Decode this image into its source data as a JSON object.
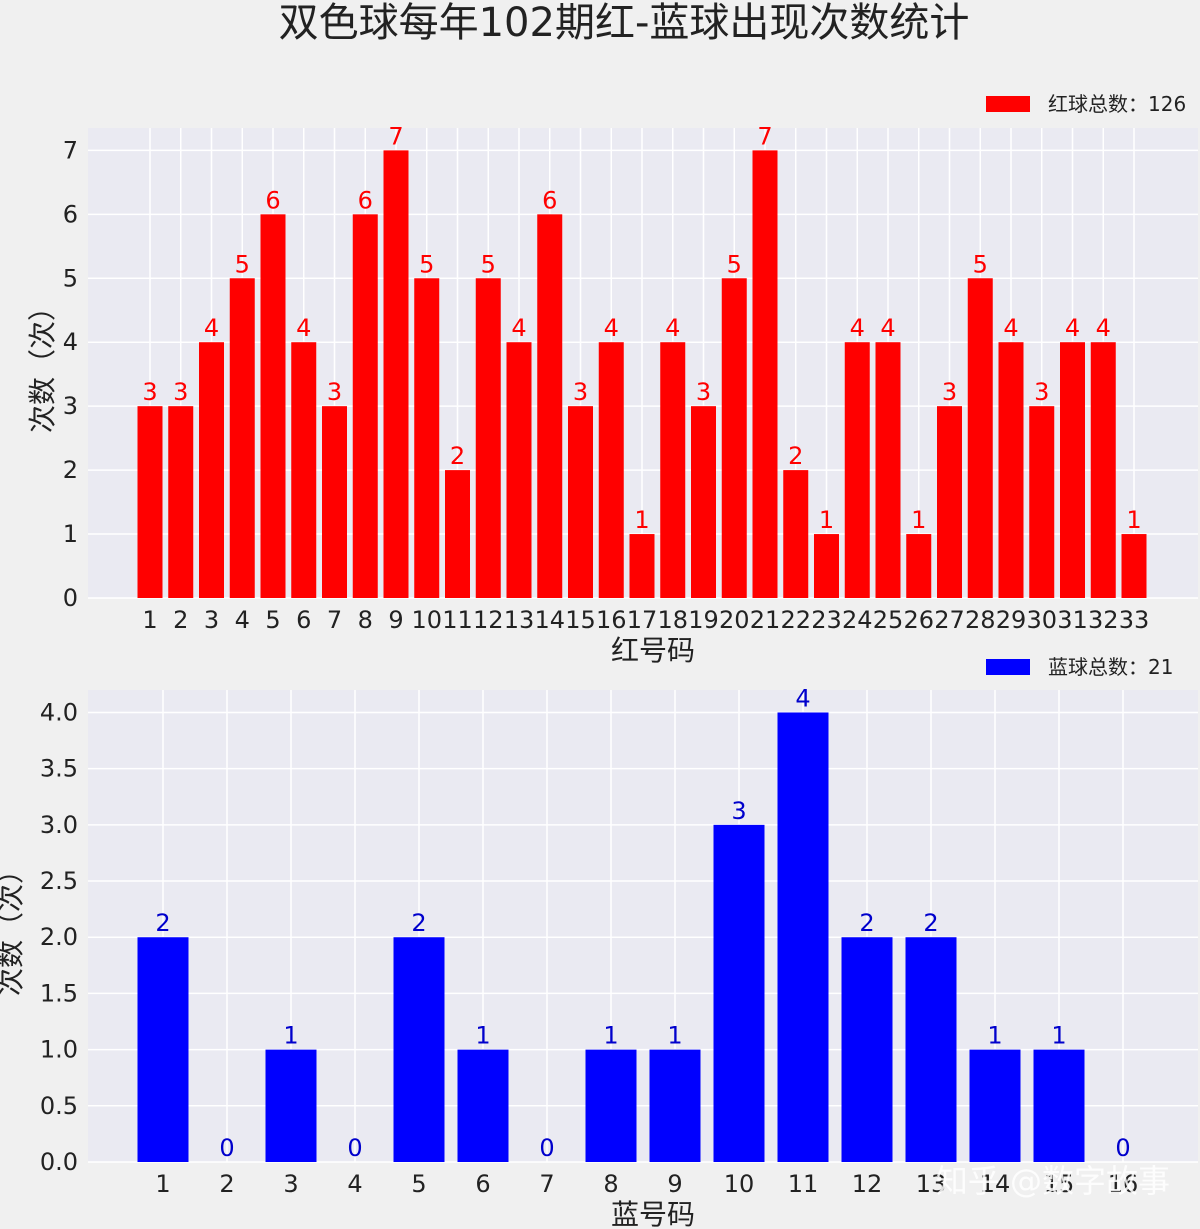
{
  "title": "双色球每年102期红-蓝球出现次数统计",
  "watermark": "知乎 @数字故事",
  "chart_data": [
    {
      "type": "bar",
      "name": "red",
      "color": "#ff0000",
      "label_color": "#ff0000",
      "categories": [
        "1",
        "2",
        "3",
        "4",
        "5",
        "6",
        "7",
        "8",
        "9",
        "10",
        "11",
        "12",
        "13",
        "14",
        "15",
        "16",
        "17",
        "18",
        "19",
        "20",
        "21",
        "22",
        "23",
        "24",
        "25",
        "26",
        "27",
        "28",
        "29",
        "30",
        "31",
        "32",
        "33"
      ],
      "values": [
        3,
        3,
        4,
        5,
        6,
        4,
        3,
        6,
        7,
        5,
        2,
        5,
        4,
        6,
        3,
        4,
        1,
        4,
        3,
        5,
        7,
        2,
        1,
        4,
        4,
        1,
        3,
        5,
        4,
        3,
        4,
        4,
        1
      ],
      "value_labels": [
        "3",
        "3",
        "4",
        "5",
        "6",
        "4",
        "3",
        "6",
        "7",
        "5",
        "2",
        "5",
        "4",
        "6",
        "3",
        "4",
        "1",
        "4",
        "3",
        "5",
        "7",
        "2",
        "1",
        "4",
        "4",
        "1",
        "3",
        "5",
        "4",
        "3",
        "4",
        "4",
        "1"
      ],
      "xlabel": "红号码",
      "ylabel": "次数（次）",
      "ylim": [
        0,
        7.35
      ],
      "yticks": [
        0,
        1,
        2,
        3,
        4,
        5,
        6,
        7
      ],
      "ytick_labels": [
        "0",
        "1",
        "2",
        "3",
        "4",
        "5",
        "6",
        "7"
      ],
      "legend": "红球总数：126",
      "legend_position": "top-right",
      "grid": true
    },
    {
      "type": "bar",
      "name": "blue",
      "color": "#0000ff",
      "label_color": "#0000cc",
      "categories": [
        "1",
        "2",
        "3",
        "4",
        "5",
        "6",
        "7",
        "8",
        "9",
        "10",
        "11",
        "12",
        "13",
        "14",
        "15",
        "16"
      ],
      "values": [
        2,
        0,
        1,
        0,
        2,
        1,
        0,
        1,
        1,
        3,
        4,
        2,
        2,
        1,
        1,
        0
      ],
      "value_labels": [
        "2",
        "0",
        "1",
        "0",
        "2",
        "1",
        "0",
        "1",
        "1",
        "3",
        "4",
        "2",
        "2",
        "1",
        "1",
        "0"
      ],
      "xlabel": "蓝号码",
      "ylabel": "次数（次）",
      "ylim": [
        0,
        4.2
      ],
      "yticks": [
        0,
        0.5,
        1,
        1.5,
        2,
        2.5,
        3,
        3.5,
        4
      ],
      "ytick_labels": [
        "0.0",
        "0.5",
        "1.0",
        "1.5",
        "2.0",
        "2.5",
        "3.0",
        "3.5",
        "4.0"
      ],
      "legend": "蓝球总数：21",
      "legend_position": "top-right",
      "grid": true
    }
  ]
}
